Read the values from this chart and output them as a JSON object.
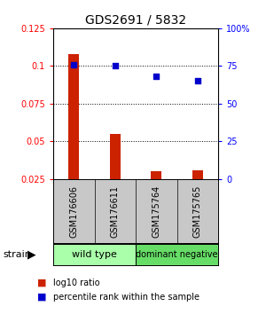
{
  "title": "GDS2691 / 5832",
  "samples": [
    "GSM176606",
    "GSM176611",
    "GSM175764",
    "GSM175765"
  ],
  "log10_ratio": [
    0.108,
    0.055,
    0.03,
    0.031
  ],
  "percentile_rank": [
    76,
    75,
    68,
    65
  ],
  "group1_label": "wild type",
  "group2_label": "dominant negative",
  "group1_color": "#aaffaa",
  "group2_color": "#66dd66",
  "ylim_left": [
    0.025,
    0.125
  ],
  "ylim_right": [
    0,
    100
  ],
  "yticks_left": [
    0.025,
    0.05,
    0.075,
    0.1,
    0.125
  ],
  "ytick_labels_left": [
    "0.025",
    "0.05",
    "0.075",
    "0.1",
    "0.125"
  ],
  "yticks_right": [
    0,
    25,
    50,
    75,
    100
  ],
  "ytick_labels_right": [
    "0",
    "25",
    "50",
    "75",
    "100%"
  ],
  "bar_color": "#cc2200",
  "dot_color": "#0000cc",
  "background_color": "#ffffff",
  "gray_label_bg": "#c8c8c8",
  "strain_label": "strain",
  "legend_bar_label": "log10 ratio",
  "legend_dot_label": "percentile rank within the sample",
  "bar_width": 0.25
}
